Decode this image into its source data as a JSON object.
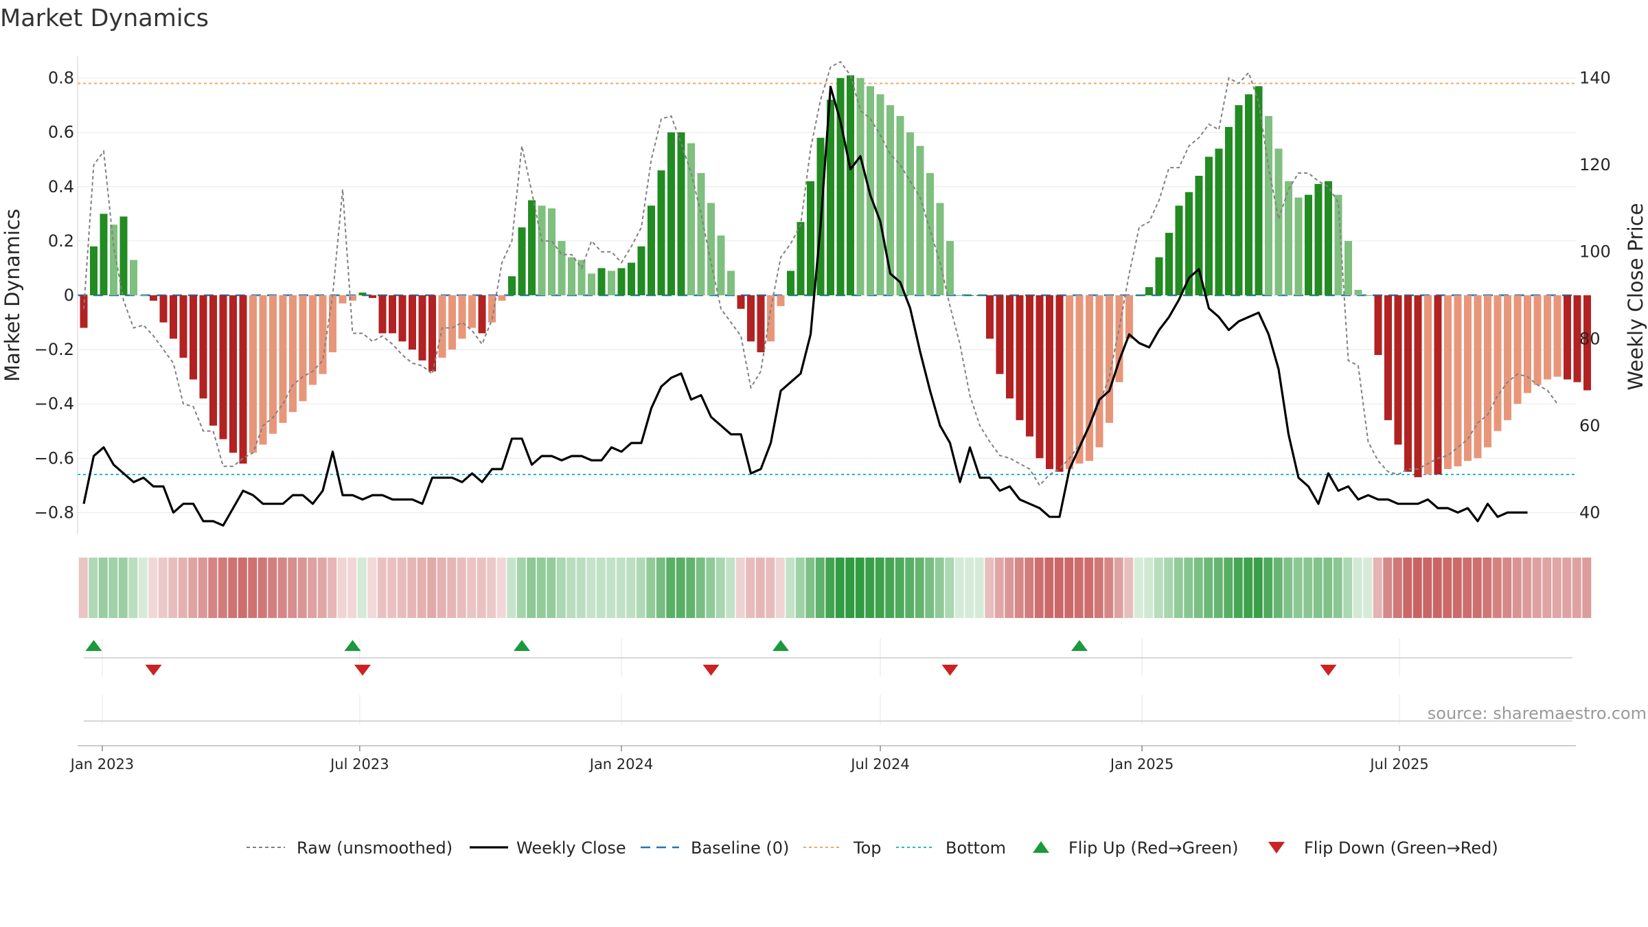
{
  "chart_data": {
    "type": "bar",
    "title": "Market Dynamics",
    "source": "source: sharemaestro.com",
    "x_start": "2022-12-19",
    "x_step_weeks": 1,
    "left_axis": {
      "label": "Market Dynamics",
      "ylim": [
        -0.88,
        0.88
      ],
      "ticks": [
        {
          "v": 0.8,
          "label": "0.8"
        },
        {
          "v": 0.6,
          "label": "0.6"
        },
        {
          "v": 0.4,
          "label": "0.4"
        },
        {
          "v": 0.2,
          "label": "0.2"
        },
        {
          "v": 0,
          "label": "0"
        },
        {
          "v": -0.2,
          "label": "−0.2"
        },
        {
          "v": -0.4,
          "label": "−0.4"
        },
        {
          "v": -0.6,
          "label": "−0.6"
        },
        {
          "v": -0.8,
          "label": "−0.8"
        }
      ]
    },
    "right_axis": {
      "label": "Weekly Close Price",
      "ylim": [
        35,
        145
      ],
      "ticks": [
        {
          "v": 140,
          "label": "140"
        },
        {
          "v": 120,
          "label": "120"
        },
        {
          "v": 100,
          "label": "100"
        },
        {
          "v": 80,
          "label": "80"
        },
        {
          "v": 60,
          "label": "60"
        },
        {
          "v": 40,
          "label": "40"
        }
      ]
    },
    "x_ticks": [
      {
        "date": "2023-01-01",
        "label": "Jan 2023"
      },
      {
        "date": "2023-07-01",
        "label": "Jul 2023"
      },
      {
        "date": "2024-01-01",
        "label": "Jan 2024"
      },
      {
        "date": "2024-07-01",
        "label": "Jul 2024"
      },
      {
        "date": "2025-01-01",
        "label": "Jan 2025"
      },
      {
        "date": "2025-07-01",
        "label": "Jul 2025"
      }
    ],
    "top_level": 0.78,
    "bottom_level": -0.66,
    "dynamics": [
      -0.12,
      0.18,
      0.3,
      0.26,
      0.29,
      0.13,
      0.0,
      -0.02,
      -0.1,
      -0.16,
      -0.23,
      -0.31,
      -0.38,
      -0.48,
      -0.53,
      -0.58,
      -0.62,
      -0.58,
      -0.55,
      -0.51,
      -0.47,
      -0.43,
      -0.39,
      -0.33,
      -0.29,
      -0.21,
      -0.03,
      -0.02,
      0.01,
      -0.01,
      -0.14,
      -0.14,
      -0.17,
      -0.2,
      -0.24,
      -0.28,
      -0.23,
      -0.2,
      -0.16,
      -0.12,
      -0.14,
      -0.1,
      -0.02,
      0.07,
      0.25,
      0.35,
      0.33,
      0.32,
      0.2,
      0.14,
      0.13,
      0.08,
      0.1,
      0.09,
      0.1,
      0.12,
      0.18,
      0.33,
      0.46,
      0.6,
      0.6,
      0.56,
      0.45,
      0.34,
      0.22,
      0.09,
      -0.05,
      -0.17,
      -0.21,
      -0.17,
      -0.04,
      0.09,
      0.27,
      0.42,
      0.58,
      0.72,
      0.8,
      0.81,
      0.8,
      0.77,
      0.74,
      0.7,
      0.66,
      0.6,
      0.55,
      0.45,
      0.34,
      0.2,
      0.0,
      0.0,
      0.0,
      -0.16,
      -0.29,
      -0.38,
      -0.46,
      -0.52,
      -0.6,
      -0.64,
      -0.65,
      -0.64,
      -0.62,
      -0.61,
      -0.56,
      -0.47,
      -0.32,
      -0.16,
      0.0,
      0.03,
      0.14,
      0.23,
      0.33,
      0.38,
      0.44,
      0.51,
      0.54,
      0.62,
      0.7,
      0.74,
      0.77,
      0.66,
      0.54,
      0.42,
      0.36,
      0.37,
      0.41,
      0.42,
      0.37,
      0.2,
      0.02,
      0.0,
      -0.22,
      -0.46,
      -0.55,
      -0.65,
      -0.67,
      -0.66,
      -0.66,
      -0.64,
      -0.63,
      -0.61,
      -0.6,
      -0.56,
      -0.5,
      -0.46,
      -0.4,
      -0.36,
      -0.33,
      -0.31,
      -0.3,
      -0.31,
      -0.32,
      -0.35
    ],
    "raw": [
      -0.05,
      0.48,
      0.53,
      0.18,
      -0.02,
      -0.12,
      -0.11,
      -0.15,
      -0.2,
      -0.25,
      -0.4,
      -0.41,
      -0.5,
      -0.5,
      -0.63,
      -0.63,
      -0.6,
      -0.58,
      -0.48,
      -0.45,
      -0.4,
      -0.33,
      -0.3,
      -0.28,
      -0.24,
      0.0,
      0.39,
      -0.14,
      -0.14,
      -0.17,
      -0.15,
      -0.18,
      -0.22,
      -0.25,
      -0.26,
      -0.29,
      -0.12,
      -0.12,
      -0.1,
      -0.13,
      -0.18,
      -0.09,
      0.12,
      0.2,
      0.55,
      0.38,
      0.2,
      0.2,
      0.15,
      0.15,
      0.1,
      0.2,
      0.16,
      0.16,
      0.12,
      0.18,
      0.25,
      0.5,
      0.65,
      0.66,
      0.56,
      0.45,
      0.3,
      0.12,
      -0.05,
      -0.1,
      -0.15,
      -0.34,
      -0.28,
      -0.05,
      0.14,
      0.19,
      0.26,
      0.54,
      0.72,
      0.84,
      0.86,
      0.81,
      0.68,
      0.65,
      0.59,
      0.52,
      0.48,
      0.42,
      0.36,
      0.24,
      0.12,
      -0.04,
      -0.18,
      -0.37,
      -0.48,
      -0.54,
      -0.59,
      -0.6,
      -0.62,
      -0.64,
      -0.7,
      -0.66,
      -0.64,
      -0.6,
      -0.55,
      -0.48,
      -0.4,
      -0.3,
      -0.12,
      0.08,
      0.25,
      0.27,
      0.35,
      0.47,
      0.47,
      0.55,
      0.58,
      0.63,
      0.61,
      0.8,
      0.78,
      0.82,
      0.71,
      0.47,
      0.28,
      0.39,
      0.45,
      0.45,
      0.42,
      0.4,
      0.34,
      -0.24,
      -0.26,
      -0.54,
      -0.61,
      -0.65,
      -0.66,
      -0.64,
      -0.64,
      -0.62,
      -0.6,
      -0.59,
      -0.56,
      -0.53,
      -0.47,
      -0.44,
      -0.37,
      -0.32,
      -0.29,
      -0.3,
      -0.33,
      -0.35,
      -0.4
    ],
    "close": [
      42,
      53,
      55,
      51,
      49,
      47,
      48,
      46,
      46,
      40,
      42,
      42,
      38,
      38,
      37,
      41,
      45,
      44,
      42,
      42,
      42,
      44,
      44,
      42,
      45,
      54,
      44,
      44,
      43,
      44,
      44,
      43,
      43,
      43,
      42,
      48,
      48,
      48,
      47,
      49,
      47,
      50,
      50,
      57,
      57,
      51,
      53,
      53,
      52,
      53,
      53,
      52,
      52,
      55,
      54,
      56,
      56,
      64,
      69,
      71,
      72,
      66,
      67,
      62,
      60,
      58,
      58,
      49,
      50,
      56,
      68,
      70,
      72,
      81,
      106,
      138,
      130,
      119,
      122,
      113,
      107,
      95,
      93,
      87,
      77,
      68,
      60,
      56,
      47,
      55,
      48,
      48,
      45,
      46,
      43,
      42,
      41,
      39,
      39,
      50,
      55,
      60,
      66,
      68,
      75,
      81,
      79,
      78,
      82,
      85,
      89,
      94,
      96,
      87,
      85,
      82,
      84,
      85,
      86,
      81,
      73,
      58,
      48,
      46,
      42,
      49,
      45,
      46,
      43,
      44,
      43,
      43,
      42,
      42,
      42,
      43,
      41,
      41,
      40,
      41,
      38,
      42,
      39,
      40,
      40,
      40
    ],
    "flips_up": [
      "2022-12-26",
      "2023-06-26",
      "2023-10-23",
      "2024-04-22",
      "2024-11-18"
    ],
    "flips_down": [
      "2023-02-06",
      "2023-07-03",
      "2024-03-04",
      "2024-08-19",
      "2025-05-12"
    ],
    "legend": [
      {
        "key": "raw",
        "label": "Raw (unsmoothed)"
      },
      {
        "key": "close",
        "label": "Weekly Close"
      },
      {
        "key": "baseline",
        "label": "Baseline (0)"
      },
      {
        "key": "top",
        "label": "Top"
      },
      {
        "key": "bottom",
        "label": "Bottom"
      },
      {
        "key": "flip_up",
        "label": "Flip Up (Red→Green)"
      },
      {
        "key": "flip_down",
        "label": "Flip Down (Green→Red)"
      }
    ],
    "colors": {
      "green_strong": "#228B22",
      "green_light": "#7FBF7F",
      "red_strong": "#B22222",
      "red_light": "#E8967A",
      "raw": "#808080",
      "close": "#000000",
      "baseline": "#1f77b4",
      "top": "#F4A460",
      "bottom": "#17BECF",
      "flip_up": "#1a9a3a",
      "flip_down": "#cc2222",
      "strip_green": "#2e9a3e",
      "strip_red": "#c04848"
    }
  }
}
